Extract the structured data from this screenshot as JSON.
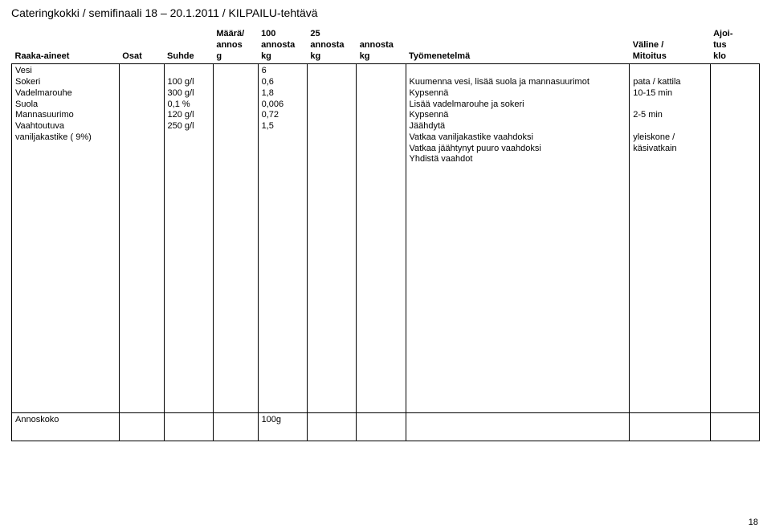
{
  "doc": {
    "title": "Cateringkokki / semifinaali 18 – 20.1.2011 / KILPAILU-tehtävä",
    "page_number": "18"
  },
  "headers": {
    "raaka": "Raaka-aineet",
    "osat": "Osat",
    "suhde": "Suhde",
    "maara": "Määrä/\nannos\ng",
    "c100": "100\nannosta\nkg",
    "c25": "25\nannosta\nkg",
    "cblank": "annosta\nkg",
    "tyo": "Työmenetelmä",
    "valine": "Väline /\nMitoitus",
    "ajoitus": "Ajoi-\ntus\nklo"
  },
  "cells": {
    "raaka": "Vesi\nSokeri\nVadelmarouhe\nSuola\nMannasuurimo\nVaahtoutuva\nvaniljakastike ( 9%)",
    "osat": "",
    "suhde": "\n100 g/l\n300 g/l\n0,1 %\n120 g/l\n250 g/l",
    "maara": "",
    "c100": "6\n0,6\n1,8\n0,006\n0,72\n1,5",
    "c25": "",
    "cblank": "",
    "tyo": "\nKuumenna vesi, lisää suola ja mannasuurimot\nKypsennä\nLisää vadelmarouhe ja sokeri\nKypsennä\nJäähdytä\nVatkaa vaniljakastike vaahdoksi\nVatkaa jäähtynyt puuro vaahdoksi\nYhdistä vaahdot",
    "valine": "\npata / kattila\n10-15 min\n\n2-5 min\n\nyleiskone /\nkäsivatkain",
    "ajoitus": ""
  },
  "row2": {
    "raaka": "Annoskoko",
    "c100": "100g"
  }
}
